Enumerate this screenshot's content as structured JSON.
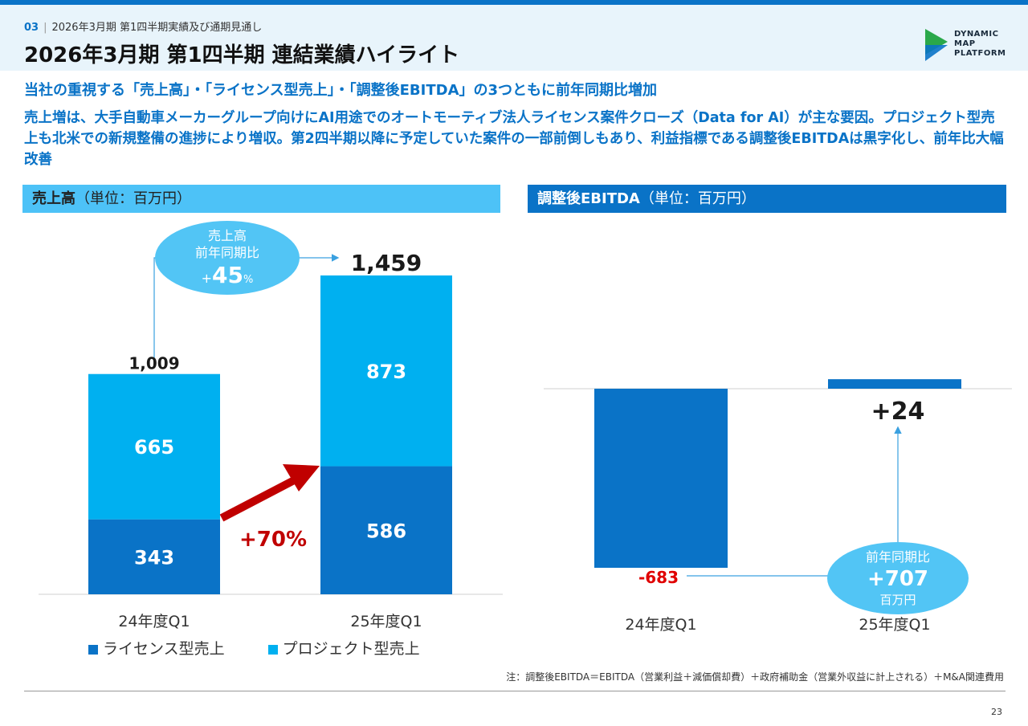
{
  "header": {
    "page_number": "03",
    "breadcrumb": "2026年3月期 第1四半期実績及び通期見通し",
    "title": "2026年3月期 第1四半期 連結業績ハイライト",
    "logo_lines": [
      "DYNAMIC",
      "MAP",
      "PLATFORM"
    ]
  },
  "lead": "当社の重視する「売上高」・「ライセンス型売上」・「調整後EBITDA」の3つともに前年同期比増加",
  "body_text": "売上増は、大手自動車メーカーグループ向けにAI用途でのオートモーティブ法人ライセンス案件クローズ（Data for AI）が主な要因。プロジェクト型売上も北米での新規整備の進捗により増収。第2四半期以降に予定していた案件の一部前倒しもあり、利益指標である調整後EBITDAは黒字化し、前年比大幅改善",
  "colors": {
    "license": "#0a73c7",
    "project": "#00b0f0",
    "growth_arrow": "#c00000",
    "bubble": "#52c5f5",
    "negative": "#e00000"
  },
  "chart_data": [
    {
      "type": "bar",
      "stacked": true,
      "title_bold": "売上高",
      "title_unit": "（単位：百万円）",
      "categories": [
        "24年度Q1",
        "25年度Q1"
      ],
      "series": [
        {
          "name": "ライセンス型売上",
          "values": [
            343,
            586
          ],
          "labels": [
            "343",
            "586"
          ]
        },
        {
          "name": "プロジェクト型売上",
          "values": [
            665,
            873
          ],
          "labels": [
            "665",
            "873"
          ]
        }
      ],
      "totals": [
        1009,
        1459
      ],
      "total_labels": [
        "1,009",
        "1,459"
      ],
      "ylim": [
        0,
        1459
      ],
      "legend_position": "bottom-left",
      "annotations": {
        "growth_label": "+70%",
        "bubble_lines": [
          "売上高",
          "前年同期比"
        ],
        "bubble_prefix": "+",
        "bubble_value": "45",
        "bubble_suffix": "%"
      }
    },
    {
      "type": "bar",
      "title_bold": "調整後EBITDA",
      "title_unit": "（単位：百万円）",
      "categories": [
        "24年度Q1",
        "25年度Q1"
      ],
      "values": [
        -683,
        24
      ],
      "value_labels": [
        "-683",
        "+24"
      ],
      "ylim": [
        -683,
        24
      ],
      "annotations": {
        "bubble_top": "前年同期比",
        "bubble_value": "+707",
        "bubble_bottom": "百万円"
      }
    }
  ],
  "note": "注：調整後EBITDA＝EBITDA（営業利益＋減価償却費）＋政府補助金（営業外収益に計上される）＋M&A関連費用",
  "page_footer": "23"
}
